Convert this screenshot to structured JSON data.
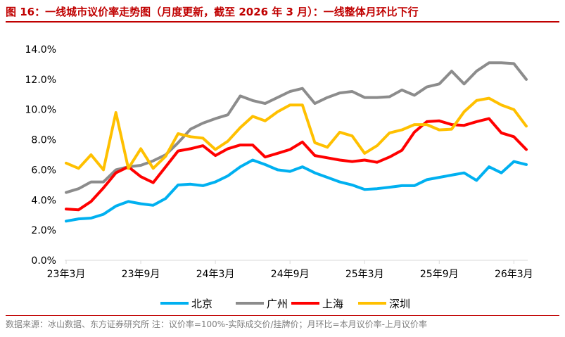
{
  "title": "图 16：一线城市议价率走势图（月度更新，截至 2026 年 3 月）：一线整体月环比下行",
  "footnote": "数据来源：冰山数据、东方证券研究所   注：议价率=100%-实际成交价/挂牌价；月环比=本月议价率-上月议价率",
  "chart_data": {
    "type": "line",
    "y_ticks": [
      "14.0%",
      "12.0%",
      "10.0%",
      "8.0%",
      "6.0%",
      "4.0%",
      "2.0%",
      "0.0%"
    ],
    "ylim": [
      0,
      14
    ],
    "x_ticks": [
      {
        "label": "23年3月",
        "index": 0
      },
      {
        "label": "23年9月",
        "index": 6
      },
      {
        "label": "24年3月",
        "index": 12
      },
      {
        "label": "24年9月",
        "index": 18
      },
      {
        "label": "25年3月",
        "index": 24
      },
      {
        "label": "25年9月",
        "index": 30
      },
      {
        "label": "26年3月",
        "index": 36
      }
    ],
    "series": [
      {
        "name": "北京",
        "color": "#00b0f0",
        "values": [
          2.6,
          2.75,
          2.8,
          3.05,
          3.6,
          3.9,
          3.75,
          3.65,
          4.1,
          5.0,
          5.05,
          4.95,
          5.2,
          5.6,
          6.2,
          6.65,
          6.35,
          6.0,
          5.9,
          6.2,
          5.8,
          5.5,
          5.2,
          5.0,
          4.7,
          4.75,
          4.85,
          4.95,
          4.95,
          5.35,
          5.5,
          5.65,
          5.8,
          5.3,
          6.2,
          5.8,
          6.55,
          6.35
        ]
      },
      {
        "name": "广州",
        "color": "#8c8c8c",
        "values": [
          4.5,
          4.75,
          5.2,
          5.2,
          6.0,
          6.2,
          6.3,
          6.6,
          7.0,
          7.8,
          8.7,
          9.1,
          9.4,
          9.65,
          10.9,
          10.6,
          10.4,
          10.8,
          11.2,
          11.4,
          10.4,
          10.8,
          11.1,
          11.2,
          10.8,
          10.8,
          10.85,
          11.3,
          10.95,
          11.5,
          11.7,
          12.55,
          11.7,
          12.55,
          13.1,
          13.1,
          13.05,
          12.0
        ]
      },
      {
        "name": "上海",
        "color": "#ff0000",
        "values": [
          3.4,
          3.35,
          3.9,
          4.8,
          5.8,
          6.2,
          5.55,
          5.15,
          6.2,
          7.25,
          7.4,
          7.6,
          6.95,
          7.4,
          7.65,
          7.65,
          6.85,
          7.1,
          7.35,
          7.85,
          6.95,
          6.8,
          6.65,
          6.55,
          6.65,
          6.5,
          6.85,
          7.3,
          8.5,
          9.2,
          9.25,
          9.0,
          8.95,
          9.2,
          9.4,
          8.45,
          8.2,
          7.35
        ]
      },
      {
        "name": "深圳",
        "color": "#ffc000",
        "values": [
          6.45,
          6.1,
          7.0,
          6.0,
          9.8,
          6.1,
          7.4,
          6.1,
          6.9,
          8.4,
          8.2,
          8.1,
          7.35,
          7.9,
          8.8,
          9.55,
          9.25,
          9.85,
          10.3,
          10.3,
          7.8,
          7.5,
          8.5,
          8.25,
          7.1,
          7.6,
          8.45,
          8.65,
          9.0,
          9.0,
          8.65,
          8.7,
          9.85,
          10.6,
          10.75,
          10.3,
          10.0,
          8.9
        ]
      }
    ],
    "legend": "bottom",
    "grid": false
  }
}
